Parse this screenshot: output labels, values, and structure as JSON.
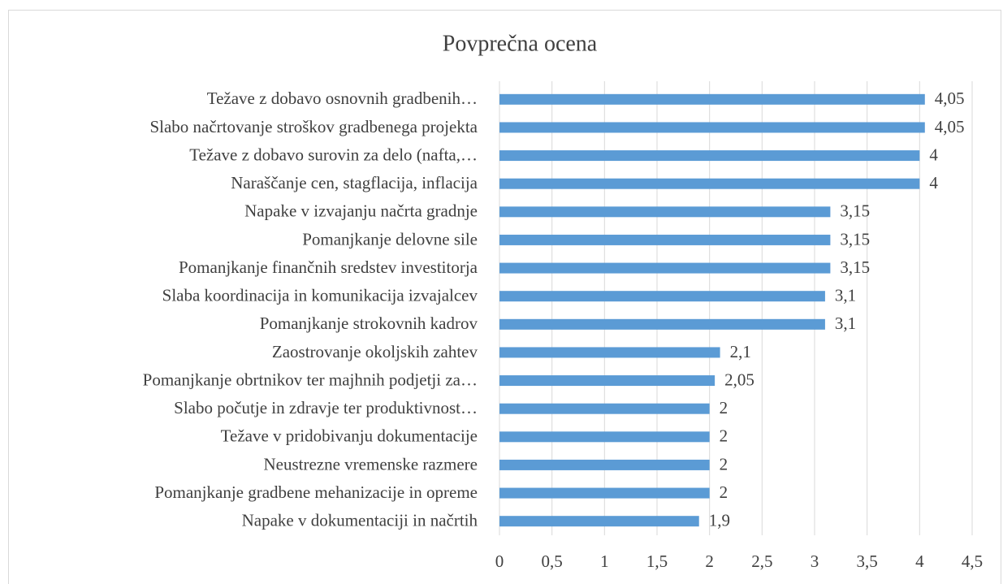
{
  "chart_data": {
    "type": "hbar",
    "title": "Povprečna ocena",
    "categories": [
      "Težave z dobavo osnovnih gradbenih…",
      "Slabo načrtovanje stroškov gradbenega projekta",
      "Težave z dobavo surovin za delo (nafta,…",
      "Naraščanje cen, stagflacija, inflacija",
      "Napake v izvajanju načrta gradnje",
      "Pomanjkanje delovne sile",
      "Pomanjkanje finančnih sredstev investitorja",
      "Slaba koordinacija in komunikacija izvajalcev",
      "Pomanjkanje strokovnih kadrov",
      "Zaostrovanje okoljskih zahtev",
      "Pomanjkanje obrtnikov ter majhnih podjetji za…",
      "Slabo počutje in zdravje ter produktivnost…",
      "Težave v pridobivanju dokumentacije",
      "Neustrezne vremenske razmere",
      "Pomanjkanje gradbene mehanizacije in opreme",
      "Napake v dokumentaciji in načrtih"
    ],
    "values": [
      4.05,
      4.05,
      4,
      4,
      3.15,
      3.15,
      3.15,
      3.1,
      3.1,
      2.1,
      2.05,
      2,
      2,
      2,
      2,
      1.9
    ],
    "value_labels": [
      "4,05",
      "4,05",
      "4",
      "4",
      "3,15",
      "3,15",
      "3,15",
      "3,1",
      "3,1",
      "2,1",
      "2,05",
      "2",
      "2",
      "2",
      "2",
      "1,9"
    ],
    "color": "#5b9bd5",
    "xlim": [
      0,
      4.5
    ],
    "xticks": [
      0,
      {
        "value": 0.5,
        "label": "0,5"
      },
      1,
      {
        "value": 1.5,
        "label": "1,5"
      },
      2,
      {
        "value": 2.5,
        "label": "2,5"
      },
      3,
      {
        "value": 3.5,
        "label": "3,5"
      },
      4,
      {
        "value": 4.5,
        "label": "4,5"
      }
    ],
    "grid": true
  }
}
